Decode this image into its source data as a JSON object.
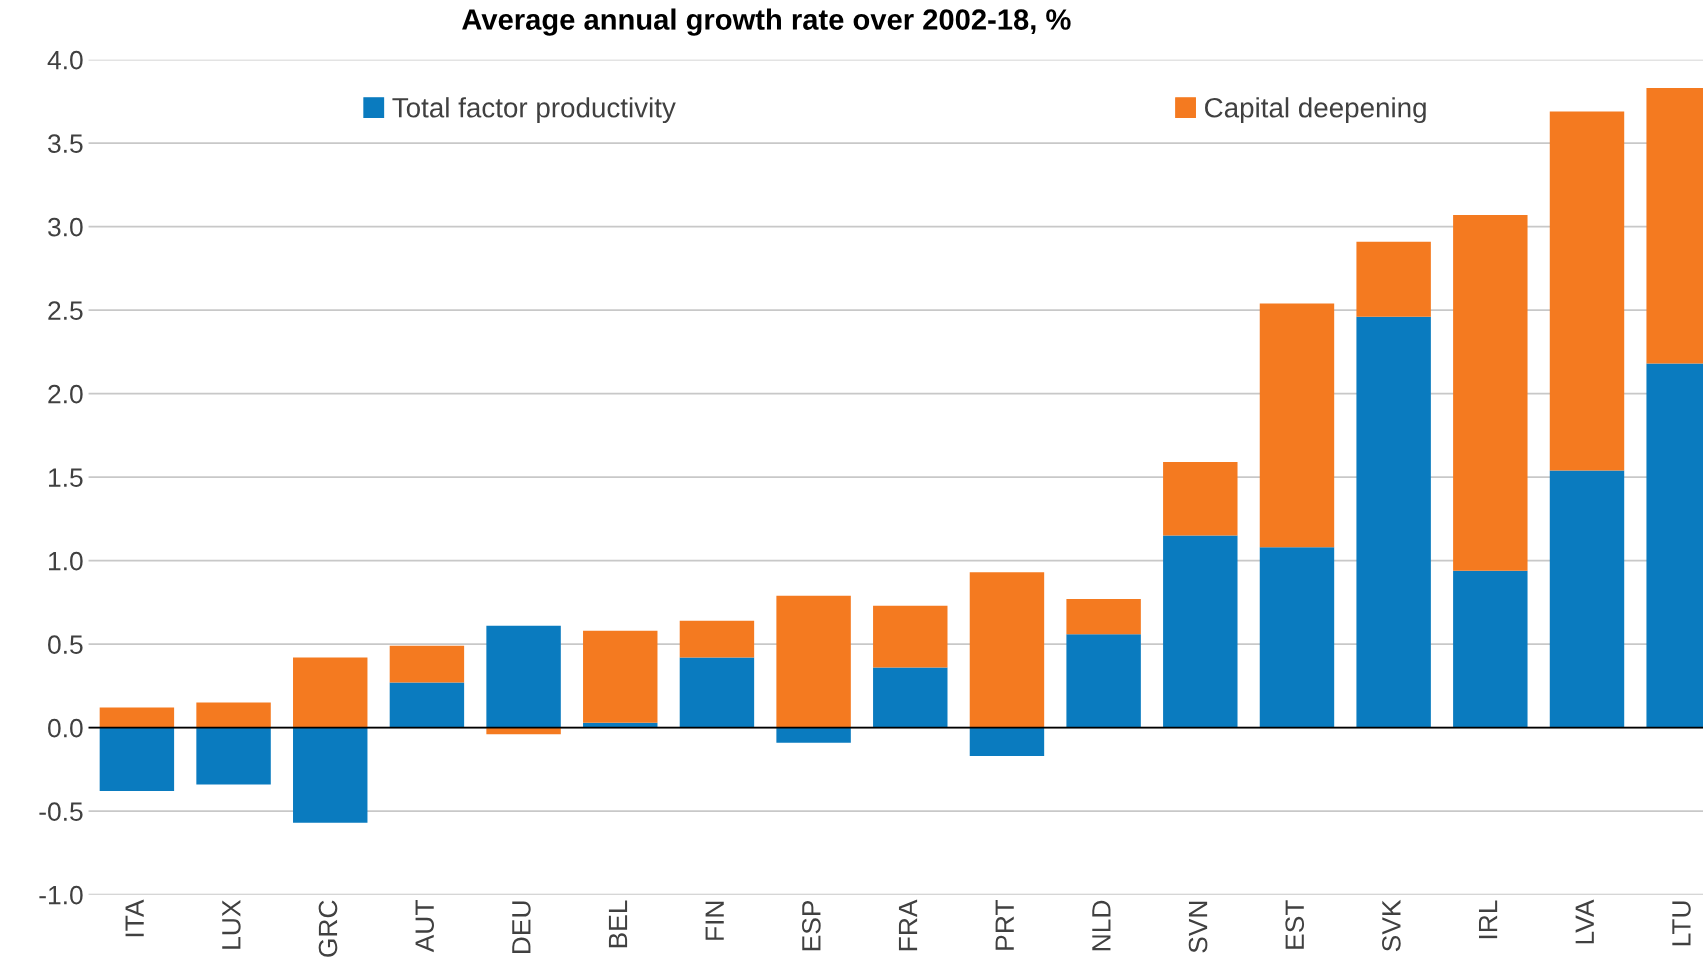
{
  "chart_data": {
    "type": "bar",
    "title": "Average annual growth rate over 2002-18, %",
    "stacked": true,
    "categories": [
      "ITA",
      "LUX",
      "GRC",
      "AUT",
      "DEU",
      "BEL",
      "FIN",
      "ESP",
      "FRA",
      "PRT",
      "NLD",
      "SVN",
      "EST",
      "SVK",
      "IRL",
      "LVA",
      "LTU"
    ],
    "series": [
      {
        "name": "Total factor productivity",
        "color": "#0a7bbf",
        "values": [
          -0.38,
          -0.34,
          -0.57,
          0.27,
          0.61,
          0.03,
          0.42,
          -0.09,
          0.36,
          -0.17,
          0.56,
          1.15,
          1.08,
          2.46,
          0.94,
          1.54,
          2.18
        ]
      },
      {
        "name": "Capital deepening",
        "color": "#f47a20",
        "values": [
          0.12,
          0.15,
          0.42,
          0.22,
          -0.04,
          0.55,
          0.22,
          0.79,
          0.37,
          0.93,
          0.21,
          0.44,
          1.46,
          0.45,
          2.13,
          2.15,
          1.65
        ]
      }
    ],
    "ylim": [
      -1.0,
      4.0
    ],
    "yticks": [
      {
        "value": -1.0,
        "label": "-1.0"
      },
      {
        "value": -0.5,
        "label": "-0.5"
      },
      {
        "value": 0.0,
        "label": "0.0"
      },
      {
        "value": 0.5,
        "label": "0.5"
      },
      {
        "value": 1.0,
        "label": "1.0"
      },
      {
        "value": 1.5,
        "label": "1.5"
      },
      {
        "value": 2.0,
        "label": "2.0"
      },
      {
        "value": 2.5,
        "label": "2.5"
      },
      {
        "value": 3.0,
        "label": "3.0"
      },
      {
        "value": 3.5,
        "label": "3.5"
      },
      {
        "value": 4.0,
        "label": "4.0"
      }
    ],
    "grid": "y",
    "legend": "top",
    "ref_lines": [
      {
        "axis": "y",
        "value": 0,
        "color": "#000000"
      }
    ]
  }
}
